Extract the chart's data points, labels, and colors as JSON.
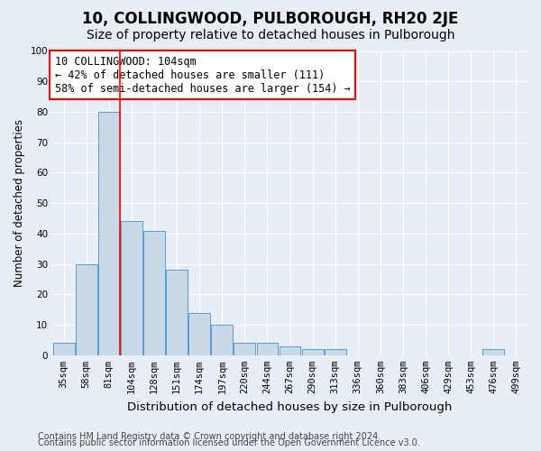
{
  "title1": "10, COLLINGWOOD, PULBOROUGH, RH20 2JE",
  "title2": "Size of property relative to detached houses in Pulborough",
  "xlabel": "Distribution of detached houses by size in Pulborough",
  "ylabel": "Number of detached properties",
  "categories": [
    "35sqm",
    "58sqm",
    "81sqm",
    "104sqm",
    "128sqm",
    "151sqm",
    "174sqm",
    "197sqm",
    "220sqm",
    "244sqm",
    "267sqm",
    "290sqm",
    "313sqm",
    "336sqm",
    "360sqm",
    "383sqm",
    "406sqm",
    "429sqm",
    "453sqm",
    "476sqm",
    "499sqm"
  ],
  "values": [
    4,
    30,
    80,
    44,
    41,
    28,
    14,
    10,
    4,
    4,
    3,
    2,
    2,
    0,
    0,
    0,
    0,
    0,
    0,
    2,
    0
  ],
  "bar_color": "#c9d9e8",
  "bar_edge_color": "#5b9bd5",
  "red_line_x": 2.5,
  "annotation_line1": "10 COLLINGWOOD: 104sqm",
  "annotation_line2": "← 42% of detached houses are smaller (111)",
  "annotation_line3": "58% of semi-detached houses are larger (154) →",
  "ylim": [
    0,
    100
  ],
  "yticks": [
    0,
    10,
    20,
    30,
    40,
    50,
    60,
    70,
    80,
    90,
    100
  ],
  "footer1": "Contains HM Land Registry data © Crown copyright and database right 2024.",
  "footer2": "Contains public sector information licensed under the Open Government Licence v3.0.",
  "bg_color": "#e8eef5",
  "plot_bg_color": "#e8eef5",
  "grid_color": "#ffffff",
  "title1_fontsize": 12,
  "title2_fontsize": 10,
  "xlabel_fontsize": 9.5,
  "ylabel_fontsize": 8.5,
  "tick_fontsize": 7.5,
  "footer_fontsize": 7,
  "annotation_fontsize": 8.5
}
